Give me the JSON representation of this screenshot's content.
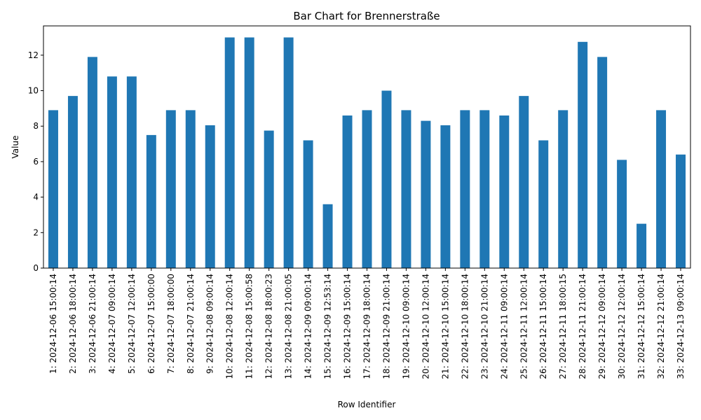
{
  "chart_data": {
    "type": "bar",
    "title": "Bar Chart for Brennerstraße",
    "xlabel": "Row Identifier",
    "ylabel": "Value",
    "ylim": [
      0,
      13.65
    ],
    "yticks": [
      0,
      2,
      4,
      6,
      8,
      10,
      12
    ],
    "grid": false,
    "legend": "none",
    "bar_color": "#1f77b4",
    "categories": [
      "1: 2024-12-06 15:00:14",
      "2: 2024-12-06 18:00:14",
      "3: 2024-12-06 21:00:14",
      "4: 2024-12-07 09:00:14",
      "5: 2024-12-07 12:00:14",
      "6: 2024-12-07 15:00:00",
      "7: 2024-12-07 18:00:00",
      "8: 2024-12-07 21:00:14",
      "9: 2024-12-08 09:00:14",
      "10: 2024-12-08 12:00:14",
      "11: 2024-12-08 15:00:58",
      "12: 2024-12-08 18:00:23",
      "13: 2024-12-08 21:00:05",
      "14: 2024-12-09 09:00:14",
      "15: 2024-12-09 12:53:14",
      "16: 2024-12-09 15:00:14",
      "17: 2024-12-09 18:00:14",
      "18: 2024-12-09 21:00:14",
      "19: 2024-12-10 09:00:14",
      "20: 2024-12-10 12:00:14",
      "21: 2024-12-10 15:00:14",
      "22: 2024-12-10 18:00:14",
      "23: 2024-12-10 21:00:14",
      "24: 2024-12-11 09:00:14",
      "25: 2024-12-11 12:00:14",
      "26: 2024-12-11 15:00:14",
      "27: 2024-12-11 18:00:15",
      "28: 2024-12-11 21:00:14",
      "29: 2024-12-12 09:00:14",
      "30: 2024-12-12 12:00:14",
      "31: 2024-12-12 15:00:14",
      "32: 2024-12-12 21:00:14",
      "33: 2024-12-13 09:00:14"
    ],
    "values": [
      8.9,
      9.7,
      11.9,
      10.8,
      10.8,
      7.5,
      8.9,
      8.9,
      8.05,
      13.0,
      13.0,
      7.75,
      13.0,
      7.2,
      3.6,
      8.6,
      8.9,
      10.0,
      8.9,
      8.3,
      8.05,
      8.9,
      8.9,
      8.6,
      9.7,
      7.2,
      8.9,
      12.75,
      11.9,
      6.1,
      2.5,
      8.9,
      6.4
    ]
  }
}
